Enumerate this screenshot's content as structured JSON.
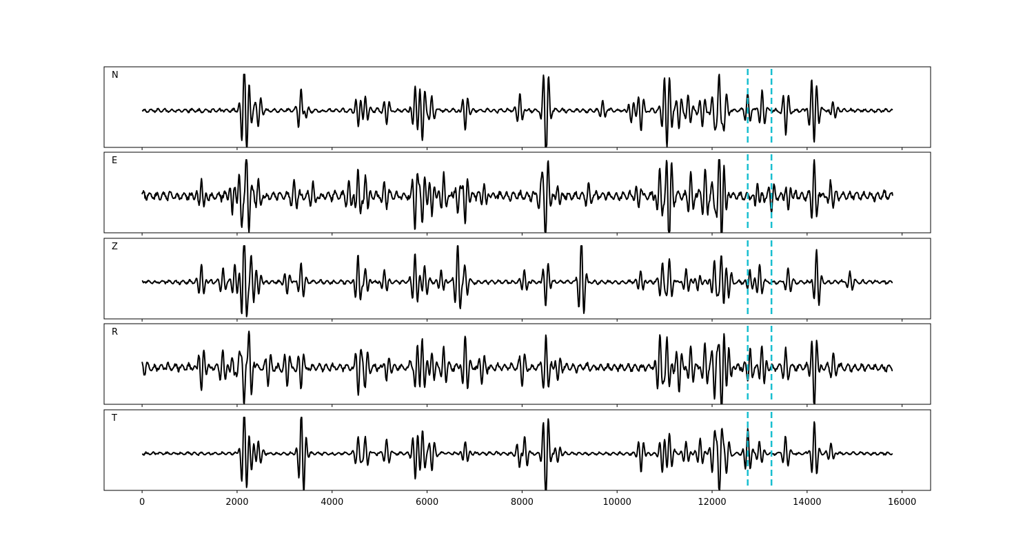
{
  "chart_data": {
    "type": "line",
    "title": "",
    "xlabel": "",
    "ylabel": "",
    "xlim": [
      -800,
      16600
    ],
    "x_ticks": [
      0,
      2000,
      4000,
      6000,
      8000,
      10000,
      12000,
      14000,
      16000
    ],
    "x_tick_labels": [
      "0",
      "2000",
      "4000",
      "6000",
      "8000",
      "10000",
      "12000",
      "14000",
      "16000"
    ],
    "grid": false,
    "legend": "none",
    "pick_lines": {
      "x": [
        12750,
        13250
      ],
      "color": "#17becf",
      "style": "dashed"
    },
    "trace_x_range": [
      0,
      15800
    ],
    "series": [
      {
        "name": "N",
        "noise": 0.05,
        "seed": 11,
        "events": [
          [
            2150,
            1.6
          ],
          [
            2250,
            0.6
          ],
          [
            2450,
            0.5
          ],
          [
            3350,
            1.0
          ],
          [
            3400,
            0.6
          ],
          [
            4550,
            0.5
          ],
          [
            4700,
            0.4
          ],
          [
            5150,
            0.4
          ],
          [
            5750,
            0.8
          ],
          [
            5900,
            0.9
          ],
          [
            6100,
            0.4
          ],
          [
            6800,
            0.6
          ],
          [
            7950,
            0.5
          ],
          [
            8500,
            1.7
          ],
          [
            9700,
            0.3
          ],
          [
            10300,
            0.4
          ],
          [
            10500,
            0.6
          ],
          [
            11000,
            0.9
          ],
          [
            11100,
            0.9
          ],
          [
            11300,
            0.6
          ],
          [
            11500,
            0.5
          ],
          [
            11800,
            0.5
          ],
          [
            12050,
            0.7
          ],
          [
            12150,
            1.3
          ],
          [
            12250,
            0.8
          ],
          [
            12750,
            0.5
          ],
          [
            13050,
            0.6
          ],
          [
            13550,
            0.7
          ],
          [
            14100,
            0.9
          ],
          [
            14200,
            0.6
          ],
          [
            14550,
            0.3
          ]
        ]
      },
      {
        "name": "E",
        "noise": 0.12,
        "seed": 23,
        "events": [
          [
            1250,
            0.6
          ],
          [
            1900,
            0.6
          ],
          [
            2100,
            1.1
          ],
          [
            2200,
            1.5
          ],
          [
            2450,
            0.5
          ],
          [
            3200,
            0.4
          ],
          [
            3600,
            0.4
          ],
          [
            4350,
            0.4
          ],
          [
            4550,
            0.9
          ],
          [
            4700,
            0.7
          ],
          [
            5100,
            0.4
          ],
          [
            5750,
            1.0
          ],
          [
            5900,
            0.8
          ],
          [
            6100,
            0.7
          ],
          [
            6350,
            0.6
          ],
          [
            6650,
            0.6
          ],
          [
            6800,
            0.9
          ],
          [
            7200,
            0.4
          ],
          [
            8400,
            0.6
          ],
          [
            8500,
            1.4
          ],
          [
            8750,
            0.4
          ],
          [
            9400,
            0.3
          ],
          [
            10450,
            0.4
          ],
          [
            10900,
            0.9
          ],
          [
            11050,
            0.6
          ],
          [
            11100,
            1.2
          ],
          [
            11550,
            0.7
          ],
          [
            11850,
            0.8
          ],
          [
            12050,
            0.6
          ],
          [
            12150,
            1.6
          ],
          [
            12250,
            0.8
          ],
          [
            12950,
            0.5
          ],
          [
            13250,
            0.4
          ],
          [
            13600,
            0.5
          ],
          [
            14150,
            1.1
          ],
          [
            14500,
            0.4
          ]
        ]
      },
      {
        "name": "Z",
        "noise": 0.05,
        "seed": 37,
        "events": [
          [
            1250,
            0.6
          ],
          [
            1700,
            0.4
          ],
          [
            1950,
            0.6
          ],
          [
            2150,
            1.7
          ],
          [
            2300,
            0.8
          ],
          [
            2450,
            0.4
          ],
          [
            3050,
            0.4
          ],
          [
            3350,
            0.6
          ],
          [
            4550,
            0.9
          ],
          [
            4700,
            0.5
          ],
          [
            5100,
            0.4
          ],
          [
            5750,
            0.9
          ],
          [
            5950,
            0.5
          ],
          [
            6300,
            0.4
          ],
          [
            6650,
            1.2
          ],
          [
            6800,
            0.5
          ],
          [
            8050,
            0.4
          ],
          [
            8500,
            0.8
          ],
          [
            9250,
            1.4
          ],
          [
            10500,
            0.4
          ],
          [
            10950,
            0.6
          ],
          [
            11100,
            0.7
          ],
          [
            11450,
            0.4
          ],
          [
            11700,
            0.3
          ],
          [
            12050,
            0.7
          ],
          [
            12200,
            0.9
          ],
          [
            12350,
            0.4
          ],
          [
            12800,
            0.4
          ],
          [
            13000,
            0.5
          ],
          [
            13600,
            0.4
          ],
          [
            14200,
            1.0
          ],
          [
            14900,
            0.3
          ]
        ]
      },
      {
        "name": "R",
        "noise": 0.1,
        "seed": 51,
        "events": [
          [
            0,
            0.3
          ],
          [
            1250,
            0.8
          ],
          [
            1700,
            0.5
          ],
          [
            1900,
            0.4
          ],
          [
            2050,
            0.7
          ],
          [
            2150,
            1.5
          ],
          [
            2250,
            1.4
          ],
          [
            2650,
            0.5
          ],
          [
            3050,
            0.5
          ],
          [
            3350,
            0.6
          ],
          [
            4550,
            0.8
          ],
          [
            4700,
            0.6
          ],
          [
            5150,
            0.4
          ],
          [
            5700,
            0.6
          ],
          [
            5750,
            1.1
          ],
          [
            5900,
            0.8
          ],
          [
            6100,
            0.6
          ],
          [
            6350,
            0.6
          ],
          [
            6800,
            1.0
          ],
          [
            7150,
            0.5
          ],
          [
            8000,
            0.5
          ],
          [
            8500,
            0.9
          ],
          [
            8750,
            0.4
          ],
          [
            10900,
            1.1
          ],
          [
            11050,
            1.0
          ],
          [
            11300,
            0.7
          ],
          [
            11550,
            0.6
          ],
          [
            11850,
            0.7
          ],
          [
            12050,
            0.9
          ],
          [
            12200,
            1.4
          ],
          [
            12350,
            0.6
          ],
          [
            12800,
            0.6
          ],
          [
            13050,
            0.8
          ],
          [
            13550,
            0.5
          ],
          [
            14150,
            1.4
          ],
          [
            14550,
            0.4
          ]
        ]
      },
      {
        "name": "T",
        "noise": 0.04,
        "seed": 67,
        "events": [
          [
            2150,
            1.5
          ],
          [
            2300,
            0.5
          ],
          [
            2450,
            0.4
          ],
          [
            3350,
            1.1
          ],
          [
            3400,
            0.6
          ],
          [
            4550,
            0.5
          ],
          [
            4700,
            0.5
          ],
          [
            5150,
            0.4
          ],
          [
            5750,
            0.8
          ],
          [
            5900,
            0.7
          ],
          [
            6100,
            0.5
          ],
          [
            6800,
            0.4
          ],
          [
            7950,
            0.5
          ],
          [
            8050,
            0.6
          ],
          [
            8500,
            1.7
          ],
          [
            8750,
            0.3
          ],
          [
            10500,
            0.6
          ],
          [
            10950,
            0.6
          ],
          [
            11100,
            0.6
          ],
          [
            11450,
            0.4
          ],
          [
            11750,
            0.5
          ],
          [
            12050,
            0.9
          ],
          [
            12150,
            1.4
          ],
          [
            12300,
            0.6
          ],
          [
            12750,
            0.8
          ],
          [
            13000,
            0.4
          ],
          [
            13550,
            0.5
          ],
          [
            14150,
            1.0
          ],
          [
            14500,
            0.3
          ]
        ]
      }
    ]
  }
}
